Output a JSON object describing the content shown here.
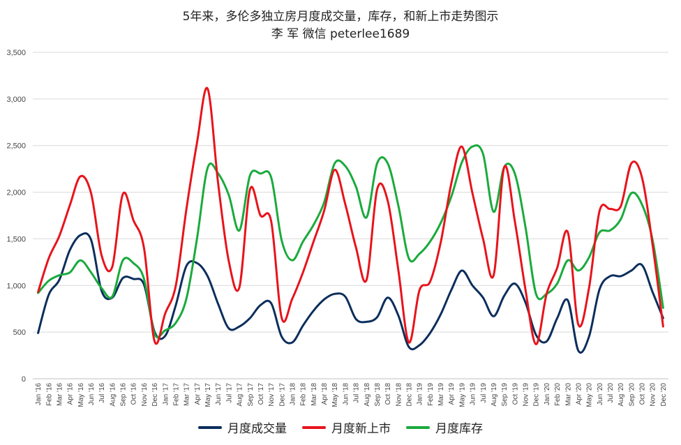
{
  "chart_data": {
    "type": "line",
    "title": "5年来，多伦多独立房月度成交量，库存，和新上市走势图示",
    "subtitle": "李 军  微信  peterlee1689",
    "xlabel": "",
    "ylabel": "",
    "ylim": [
      0,
      3500
    ],
    "yticks": [
      0,
      500,
      1000,
      1500,
      2000,
      2500,
      3000,
      3500
    ],
    "ytick_labels": [
      "0",
      "500",
      "1,000",
      "1,500",
      "2,000",
      "2,500",
      "3,000",
      "3,500"
    ],
    "grid": true,
    "legend_position": "bottom",
    "categories": [
      "Jan '16",
      "Feb '16",
      "Mar '16",
      "Apr '16",
      "May '16",
      "Jun '16",
      "Jul '16",
      "Aug '16",
      "Sep '16",
      "Oct '16",
      "Nov '16",
      "Dec '16",
      "Jan '17",
      "Feb '17",
      "Mar '17",
      "Apr '17",
      "May '17",
      "Jun '17",
      "Jul '17",
      "Aug '17",
      "Sep '17",
      "Oct '17",
      "Nov '17",
      "Dec '17",
      "Jan '18",
      "Feb '18",
      "Mar '18",
      "Apr '18",
      "May '18",
      "Jun '18",
      "Jul '18",
      "Aug '18",
      "Sep '18",
      "Oct '18",
      "Nov '18",
      "Dec '18",
      "Jan '19",
      "Feb '19",
      "Mar '19",
      "Apr '19",
      "May '19",
      "Jun '19",
      "Jul '19",
      "Aug '19",
      "Sep '19",
      "Oct '19",
      "Nov '19",
      "Dec '19",
      "Jan '20",
      "Feb '20",
      "Mar '20",
      "Apr '20",
      "May '20",
      "Jun '20",
      "Jul '20",
      "Aug '20",
      "Sep '20",
      "Oct '20",
      "Nov '20",
      "Dec '20"
    ],
    "series": [
      {
        "name": "月度成交量",
        "color": "#0b2e5c",
        "values": [
          490,
          900,
          1060,
          1380,
          1540,
          1490,
          940,
          870,
          1080,
          1070,
          1010,
          500,
          460,
          790,
          1210,
          1240,
          1100,
          800,
          540,
          560,
          650,
          790,
          810,
          450,
          390,
          570,
          730,
          850,
          910,
          880,
          640,
          610,
          660,
          870,
          680,
          340,
          360,
          490,
          690,
          950,
          1160,
          1000,
          870,
          670,
          890,
          1020,
          820,
          470,
          400,
          650,
          840,
          300,
          450,
          960,
          1100,
          1100,
          1160,
          1220,
          930,
          650
        ]
      },
      {
        "name": "月度新上市",
        "color": "#e8131b",
        "values": [
          930,
          1290,
          1530,
          1860,
          2170,
          1990,
          1320,
          1200,
          1980,
          1700,
          1400,
          400,
          700,
          1000,
          1820,
          2530,
          3110,
          2090,
          1260,
          980,
          2030,
          1750,
          1690,
          650,
          860,
          1140,
          1470,
          1800,
          2240,
          1870,
          1410,
          1060,
          2030,
          1910,
          1170,
          390,
          950,
          1040,
          1460,
          2090,
          2490,
          1990,
          1500,
          1110,
          2270,
          1690,
          960,
          370,
          910,
          1190,
          1570,
          580,
          970,
          1800,
          1820,
          1850,
          2310,
          2160,
          1440,
          560
        ]
      },
      {
        "name": "月度库存",
        "color": "#1aaa3c",
        "values": [
          920,
          1050,
          1110,
          1140,
          1270,
          1140,
          970,
          880,
          1270,
          1240,
          1070,
          480,
          520,
          600,
          860,
          1500,
          2260,
          2200,
          1970,
          1590,
          2180,
          2200,
          2160,
          1480,
          1270,
          1470,
          1650,
          1890,
          2310,
          2280,
          2060,
          1730,
          2310,
          2310,
          1860,
          1290,
          1340,
          1470,
          1670,
          1950,
          2320,
          2490,
          2410,
          1790,
          2270,
          2200,
          1630,
          910,
          910,
          1020,
          1270,
          1160,
          1300,
          1570,
          1590,
          1710,
          1990,
          1870,
          1490,
          760
        ]
      }
    ]
  }
}
